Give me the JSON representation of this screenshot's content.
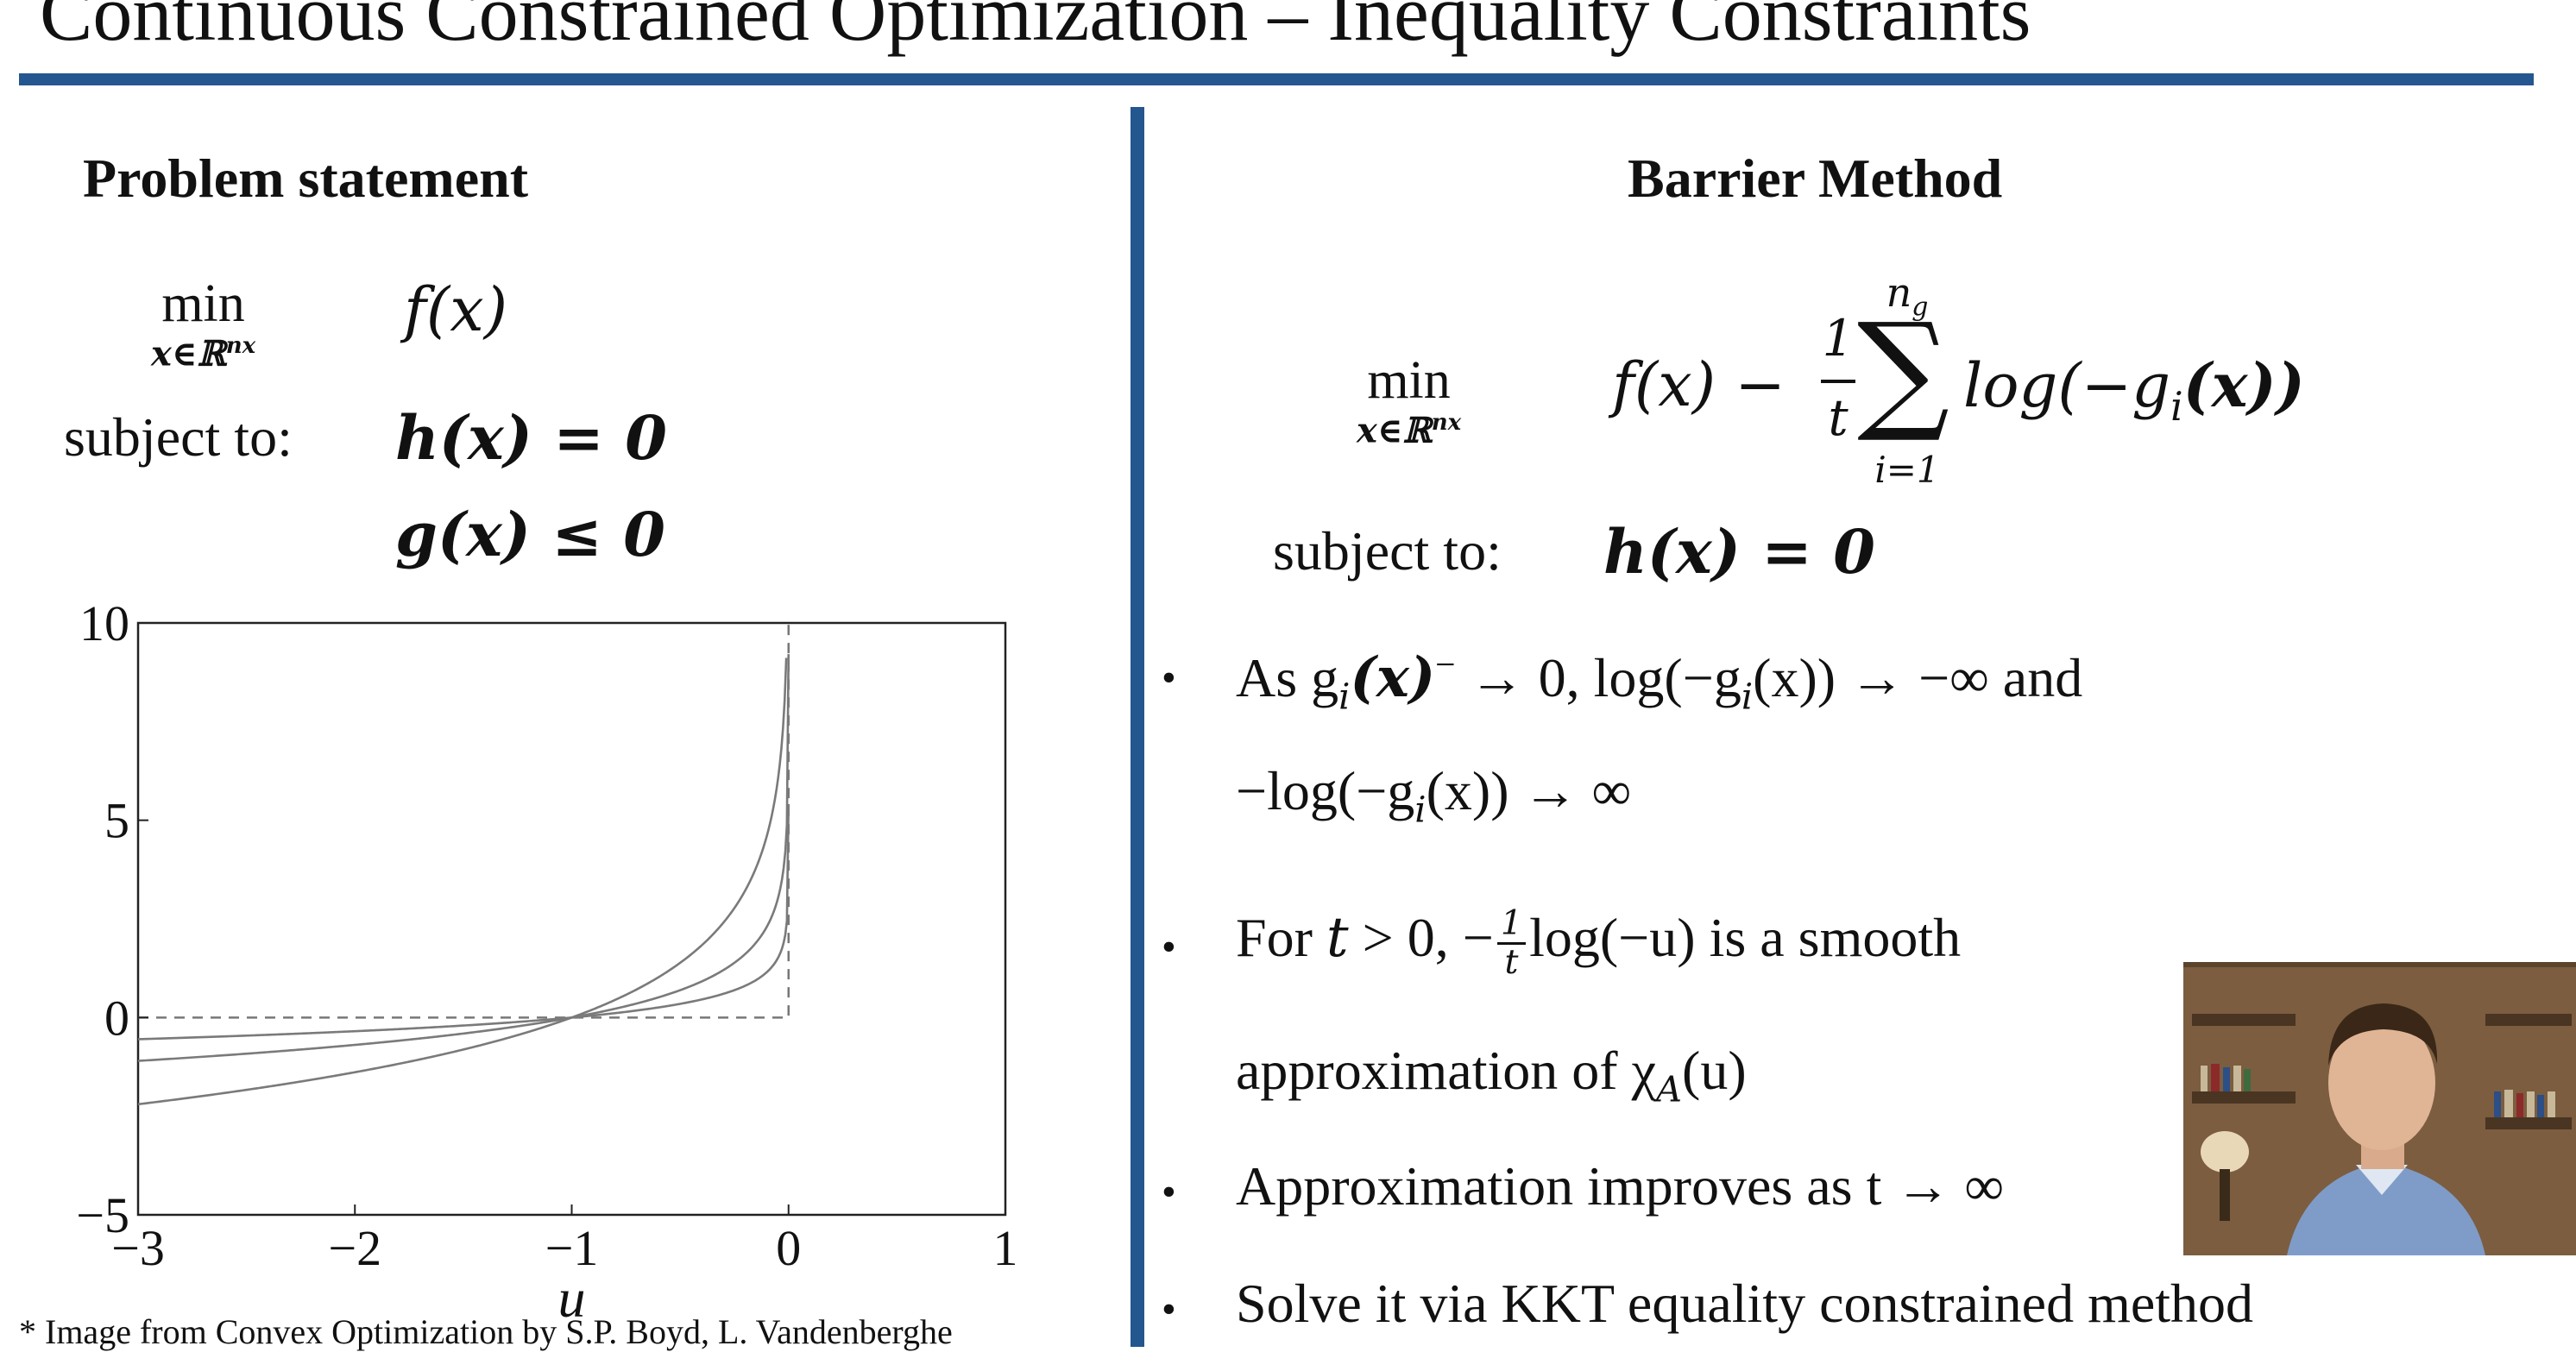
{
  "slide": {
    "title": "Continuous Constrained Optimization – Inequality Constraints",
    "left_heading": "Problem statement",
    "right_heading": "Barrier Method",
    "problem": {
      "min": "min",
      "min_under": "x∈ℝ",
      "min_under_sup": "nx",
      "objective": "f(x)",
      "subject_to": "subject to:",
      "eq": "h(x) = 0",
      "ineq": "g(x) ≤ 0"
    },
    "barrier": {
      "min": "min",
      "min_under": "x∈ℝ",
      "min_under_sup": "nx",
      "obj_prefix": "f(x) −",
      "frac_num": "1",
      "frac_den": "t",
      "sum_top": "n",
      "sum_top_sub": "g",
      "sum_bottom": "i=1",
      "sum_symbol": "∑",
      "log_term": "log(−g",
      "log_sub": "i",
      "log_end": "(x))",
      "subject_to": "subject to:",
      "eq": "h(x) = 0"
    },
    "bullets": [
      {
        "marker": "•",
        "line1": "As g",
        "line1_sub": "i",
        "line1_sup_part": "(x)",
        "line1_sup": "−",
        "line1_rest": " → 0, log(−g",
        "line1_sub2": "i",
        "line1_end": "(x)) → −∞ and",
        "line2": "−log(−g",
        "line2_sub": "i",
        "line2_end": "(x)) → ∞"
      },
      {
        "marker": "•",
        "line1_a": "For ",
        "line1_t": "t",
        "line1_b": " > 0, −",
        "frac_num": "1",
        "frac_den": "t",
        "line1_c": "log(−u) is a smooth",
        "line2_a": "approximation of χ",
        "line2_sub": "A",
        "line2_b": "(u)"
      },
      {
        "marker": "•",
        "text": "Approximation improves as t → ∞"
      },
      {
        "marker": "•",
        "text": "Solve it via KKT equality constrained method"
      }
    ],
    "footnote": "* Image from Convex Optimization by S.P. Boyd, L. Vandenberghe"
  },
  "chart_data": {
    "type": "line",
    "xlabel": "u",
    "ylabel": "",
    "xlim": [
      -3,
      1
    ],
    "ylim": [
      -5,
      10
    ],
    "x_ticks": [
      "−3",
      "−2",
      "−1",
      "0",
      "1"
    ],
    "y_ticks": [
      "10",
      "5",
      "0",
      "−5"
    ],
    "grid": false,
    "series": [
      {
        "t": 0.5,
        "x": [
          -3,
          -2.5,
          -2,
          -1.5,
          -1,
          -0.7,
          -0.5,
          -0.3,
          -0.2,
          -0.1,
          -0.05,
          -0.02,
          -0.01,
          -0.003
        ],
        "y": [
          -2.2,
          -1.83,
          -1.39,
          -0.81,
          0,
          0.71,
          1.39,
          2.41,
          3.22,
          4.61,
          5.99,
          7.82,
          9.21,
          10
        ]
      },
      {
        "t": 1,
        "x": [
          -3,
          -2.5,
          -2,
          -1.5,
          -1,
          -0.7,
          -0.5,
          -0.3,
          -0.2,
          -0.1,
          -0.05,
          -0.02,
          -0.01,
          -0.0001
        ],
        "y": [
          -1.1,
          -0.92,
          -0.69,
          -0.41,
          0,
          0.36,
          0.69,
          1.2,
          1.61,
          2.3,
          3.0,
          3.91,
          4.61,
          9.21
        ]
      },
      {
        "t": 2,
        "x": [
          -3,
          -2.5,
          -2,
          -1.5,
          -1,
          -0.7,
          -0.5,
          -0.3,
          -0.2,
          -0.1,
          -0.05,
          -0.02,
          -0.01,
          -0.001,
          -2e-05
        ],
        "y": [
          -0.55,
          -0.46,
          -0.35,
          -0.2,
          0,
          0.18,
          0.35,
          0.6,
          0.8,
          1.15,
          1.5,
          1.96,
          2.3,
          3.45,
          5.41
        ]
      }
    ],
    "indicator": {
      "x": [
        -3,
        0,
        0
      ],
      "y": [
        0,
        0,
        10
      ],
      "style": "dashed"
    }
  },
  "colors": {
    "accent": "#24568f",
    "curve": "#7a7a7a"
  },
  "webcam": {
    "icon": "presenter-video-icon"
  }
}
